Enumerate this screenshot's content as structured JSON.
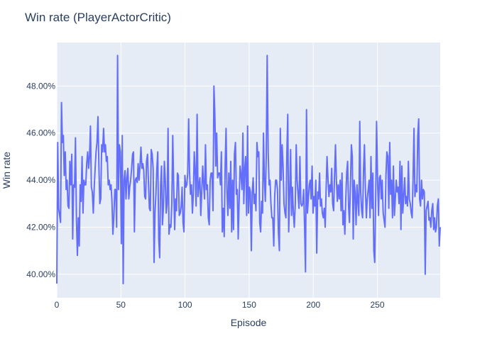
{
  "chart_data": {
    "type": "line",
    "title": "Win rate (PlayerActorCritic)",
    "xlabel": "Episode",
    "ylabel": "Win rate",
    "xlim": [
      0,
      299
    ],
    "ylim": [
      0.39,
      0.4985
    ],
    "x_ticks": [
      0,
      50,
      100,
      150,
      200,
      250
    ],
    "x_tick_labels": [
      "0",
      "50",
      "100",
      "150",
      "200",
      "250"
    ],
    "y_ticks": [
      0.4,
      0.42,
      0.44,
      0.46,
      0.48
    ],
    "y_tick_labels": [
      "40.00%",
      "42.00%",
      "44.00%",
      "46.00%",
      "48.00%"
    ],
    "grid": true,
    "legend": false,
    "colors": {
      "plot_bg": "#e5ecf6",
      "grid": "#ffffff",
      "line": "#636efa",
      "text": "#2a3f5f",
      "title": "#2a3f5f"
    },
    "series": [
      {
        "x_start": 0,
        "x_step": 1,
        "values": [
          0.396,
          0.456,
          0.428,
          0.425,
          0.422,
          0.473,
          0.456,
          0.459,
          0.442,
          0.452,
          0.436,
          0.44,
          0.429,
          0.428,
          0.448,
          0.438,
          0.451,
          0.415,
          0.438,
          0.437,
          0.458,
          0.423,
          0.408,
          0.424,
          0.412,
          0.438,
          0.431,
          0.45,
          0.426,
          0.44,
          0.438,
          0.438,
          0.447,
          0.452,
          0.445,
          0.45,
          0.463,
          0.437,
          0.435,
          0.426,
          0.437,
          0.445,
          0.452,
          0.456,
          0.467,
          0.446,
          0.43,
          0.432,
          0.455,
          0.452,
          0.462,
          0.452,
          0.455,
          0.448,
          0.45,
          0.438,
          0.44,
          0.436,
          0.438,
          0.431,
          0.417,
          0.424,
          0.436,
          0.436,
          0.42,
          0.493,
          0.436,
          0.455,
          0.452,
          0.413,
          0.459,
          0.396,
          0.44,
          0.444,
          0.432,
          0.441,
          0.445,
          0.432,
          0.437,
          0.44,
          0.445,
          0.451,
          0.452,
          0.418,
          0.44,
          0.441,
          0.439,
          0.447,
          0.44,
          0.446,
          0.454,
          0.445,
          0.447,
          0.444,
          0.433,
          0.432,
          0.448,
          0.451,
          0.439,
          0.428,
          0.427,
          0.453,
          0.451,
          0.445,
          0.405,
          0.426,
          0.434,
          0.445,
          0.452,
          0.415,
          0.407,
          0.438,
          0.446,
          0.421,
          0.428,
          0.448,
          0.44,
          0.426,
          0.43,
          0.462,
          0.417,
          0.421,
          0.42,
          0.43,
          0.459,
          0.438,
          0.419,
          0.432,
          0.427,
          0.443,
          0.442,
          0.425,
          0.426,
          0.429,
          0.437,
          0.422,
          0.418,
          0.442,
          0.437,
          0.438,
          0.443,
          0.466,
          0.443,
          0.434,
          0.438,
          0.426,
          0.434,
          0.452,
          0.444,
          0.429,
          0.468,
          0.433,
          0.438,
          0.441,
          0.425,
          0.435,
          0.446,
          0.438,
          0.432,
          0.455,
          0.436,
          0.438,
          0.424,
          0.421,
          0.44,
          0.443,
          0.443,
          0.427,
          0.48,
          0.468,
          0.446,
          0.46,
          0.441,
          0.443,
          0.443,
          0.438,
          0.452,
          0.418,
          0.428,
          0.416,
          0.446,
          0.462,
          0.435,
          0.425,
          0.443,
          0.428,
          0.448,
          0.418,
          0.44,
          0.419,
          0.451,
          0.456,
          0.434,
          0.436,
          0.415,
          0.431,
          0.446,
          0.442,
          0.436,
          0.46,
          0.43,
          0.445,
          0.45,
          0.425,
          0.463,
          0.426,
          0.437,
          0.435,
          0.41,
          0.435,
          0.441,
          0.43,
          0.434,
          0.427,
          0.456,
          0.45,
          0.452,
          0.422,
          0.418,
          0.431,
          0.426,
          0.46,
          0.44,
          0.431,
          0.45,
          0.493,
          0.452,
          0.438,
          0.44,
          0.43,
          0.424,
          0.424,
          0.412,
          0.433,
          0.44,
          0.44,
          0.436,
          0.418,
          0.41,
          0.462,
          0.44,
          0.455,
          0.446,
          0.43,
          0.426,
          0.424,
          0.451,
          0.468,
          0.418,
          0.434,
          0.453,
          0.425,
          0.437,
          0.426,
          0.42,
          0.43,
          0.455,
          0.44,
          0.434,
          0.428,
          0.45,
          0.43,
          0.429,
          0.43,
          0.436,
          0.42,
          0.401,
          0.47,
          0.426,
          0.432,
          0.438,
          0.44,
          0.432,
          0.446,
          0.426,
          0.433,
          0.429,
          0.44,
          0.409,
          0.435,
          0.432,
          0.443,
          0.429,
          0.432,
          0.426,
          0.424,
          0.428,
          0.42,
          0.436,
          0.45,
          0.44,
          0.433,
          0.438,
          0.435,
          0.445,
          0.43,
          0.427,
          0.442,
          0.455,
          0.44,
          0.431,
          0.438,
          0.432,
          0.44,
          0.427,
          0.443,
          0.421,
          0.427,
          0.417,
          0.432,
          0.443,
          0.448,
          0.429,
          0.422,
          0.438,
          0.455,
          0.45,
          0.415,
          0.44,
          0.435,
          0.421,
          0.438,
          0.431,
          0.425,
          0.465,
          0.435,
          0.427,
          0.424,
          0.444,
          0.455,
          0.437,
          0.424,
          0.432,
          0.436,
          0.44,
          0.424,
          0.45,
          0.428,
          0.443,
          0.41,
          0.405,
          0.432,
          0.465,
          0.44,
          0.425,
          0.441,
          0.442,
          0.432,
          0.44,
          0.426,
          0.423,
          0.42,
          0.442,
          0.452,
          0.45,
          0.428,
          0.456,
          0.434,
          0.44,
          0.424,
          0.446,
          0.425,
          0.432,
          0.44,
          0.435,
          0.437,
          0.43,
          0.448,
          0.419,
          0.446,
          0.426,
          0.433,
          0.441,
          0.43,
          0.433,
          0.429,
          0.448,
          0.432,
          0.43,
          0.426,
          0.424,
          0.441,
          0.462,
          0.433,
          0.438,
          0.435,
          0.459,
          0.466,
          0.432,
          0.429,
          0.44,
          0.432,
          0.436,
          0.435,
          0.4,
          0.427,
          0.429,
          0.431,
          0.423,
          0.424,
          0.42,
          0.427,
          0.43,
          0.419,
          0.424,
          0.418,
          0.42,
          0.429,
          0.432,
          0.412,
          0.42
        ]
      }
    ]
  }
}
